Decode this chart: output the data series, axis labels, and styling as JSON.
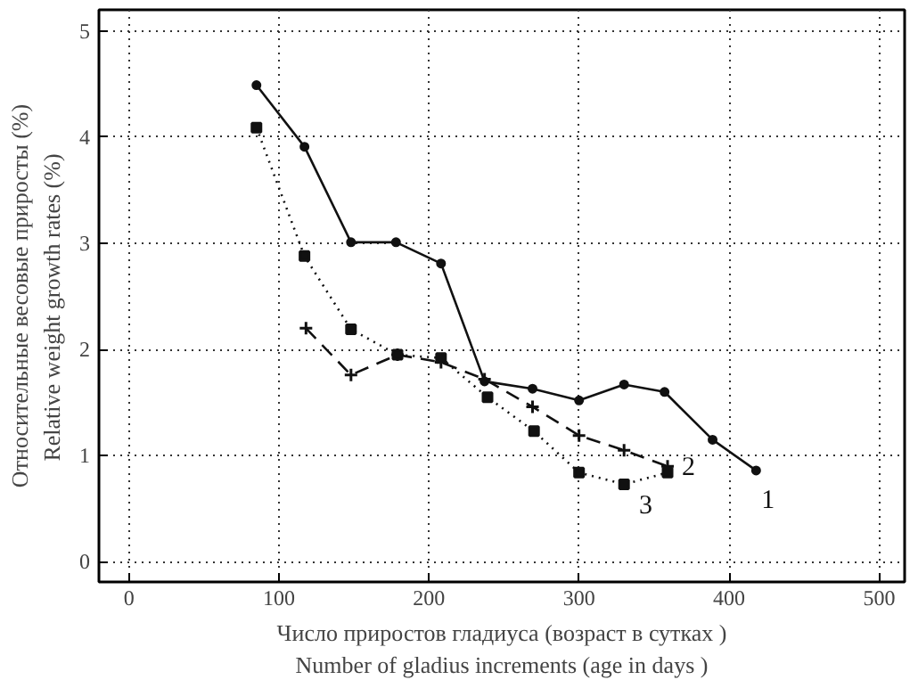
{
  "chart_data": {
    "type": "line",
    "xlabel": "Число приростов гладиуса (возраст в сутках )\nNumber of gladius increments (age in days )",
    "ylabel": "Относительные весовые приросты (%)\nRelative weight growth rates     (%)",
    "xlim": [
      -20,
      517
    ],
    "ylim": [
      -0.19,
      5.2
    ],
    "xticks": [
      0,
      100,
      200,
      300,
      400,
      500
    ],
    "yticks": [
      0,
      1,
      2,
      3,
      4,
      5
    ],
    "grid": true,
    "series": [
      {
        "name": "1",
        "color": "#111111",
        "line_style": "solid",
        "marker": "circle",
        "x": [
          85,
          117,
          148,
          178,
          208,
          237,
          269,
          300,
          330,
          357,
          389,
          418
        ],
        "values": [
          4.49,
          3.91,
          3.01,
          3.01,
          2.81,
          1.7,
          1.63,
          1.52,
          1.67,
          1.6,
          1.15,
          0.86
        ]
      },
      {
        "name": "2",
        "color": "#111111",
        "line_style": "dashed",
        "marker": "cross",
        "x": [
          118,
          148,
          179,
          208,
          237,
          269,
          300,
          330,
          359
        ],
        "values": [
          2.2,
          1.76,
          1.95,
          1.88,
          1.72,
          1.46,
          1.19,
          1.05,
          0.9
        ]
      },
      {
        "name": "3",
        "color": "#111111",
        "line_style": "dotted",
        "marker": "square",
        "x": [
          85,
          117,
          148,
          179,
          208,
          239,
          270,
          300,
          330,
          359
        ],
        "values": [
          4.09,
          2.88,
          2.19,
          1.95,
          1.92,
          1.55,
          1.23,
          0.84,
          0.73,
          0.84
        ]
      }
    ]
  }
}
